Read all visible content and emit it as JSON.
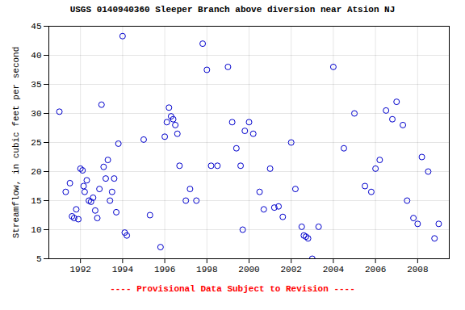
{
  "chart_data": {
    "type": "scatter",
    "title": "USGS 0140940360 Sleeper Branch above diversion near Atsion NJ",
    "ylabel": "Streamflow, in cubic feet per second",
    "annotations": [
      "---- Provisional Data Subject to Revision ----"
    ],
    "xlim": [
      1990.5,
      2009.5
    ],
    "ylim": [
      5,
      45
    ],
    "xticks": [
      1992,
      1994,
      1996,
      1998,
      2000,
      2002,
      2004,
      2006,
      2008
    ],
    "yticks": [
      5,
      10,
      15,
      20,
      25,
      30,
      35,
      40,
      45
    ],
    "grid": true,
    "color": "#0000cc",
    "marker": "circle",
    "x": [
      1991.0,
      1991.3,
      1991.5,
      1991.6,
      1991.7,
      1991.8,
      1991.9,
      1992.0,
      1992.1,
      1992.15,
      1992.2,
      1992.3,
      1992.4,
      1992.5,
      1992.6,
      1992.7,
      1992.8,
      1992.9,
      1993.0,
      1993.1,
      1993.2,
      1993.3,
      1993.4,
      1993.5,
      1993.6,
      1993.7,
      1993.8,
      1994.0,
      1994.1,
      1994.2,
      1995.0,
      1995.3,
      1995.8,
      1996.0,
      1996.1,
      1996.2,
      1996.3,
      1996.4,
      1996.5,
      1996.6,
      1996.7,
      1997.0,
      1997.2,
      1997.5,
      1997.8,
      1998.0,
      1998.2,
      1998.5,
      1999.0,
      1999.2,
      1999.4,
      1999.6,
      1999.7,
      1999.8,
      2000.0,
      2000.2,
      2000.5,
      2000.7,
      2001.0,
      2001.2,
      2001.4,
      2001.6,
      2002.0,
      2002.2,
      2002.5,
      2002.6,
      2002.7,
      2002.8,
      2003.0,
      2003.3,
      2004.0,
      2004.5,
      2005.0,
      2005.5,
      2005.8,
      2006.0,
      2006.2,
      2006.5,
      2006.8,
      2007.0,
      2007.3,
      2007.5,
      2007.8,
      2008.0,
      2008.2,
      2008.5,
      2008.8,
      2009.0
    ],
    "values": [
      30.3,
      16.5,
      18.0,
      12.3,
      12.0,
      13.5,
      11.8,
      20.5,
      20.2,
      17.5,
      16.5,
      18.5,
      15.0,
      14.8,
      15.5,
      13.3,
      12.0,
      17.0,
      31.5,
      20.8,
      18.8,
      22.0,
      15.0,
      16.5,
      18.8,
      13.0,
      24.8,
      43.3,
      9.5,
      9.0,
      25.5,
      12.5,
      7.0,
      26.0,
      28.5,
      31.0,
      29.5,
      29.0,
      28.0,
      26.5,
      21.0,
      15.0,
      17.0,
      15.0,
      42.0,
      37.5,
      21.0,
      21.0,
      38.0,
      28.5,
      24.0,
      21.0,
      10.0,
      27.0,
      28.5,
      26.5,
      16.5,
      13.5,
      20.5,
      13.8,
      14.0,
      12.2,
      25.0,
      17.0,
      10.5,
      9.0,
      8.8,
      8.5,
      5.0,
      10.5,
      38.0,
      24.0,
      30.0,
      17.5,
      16.5,
      20.5,
      22.0,
      30.5,
      29.0,
      32.0,
      28.0,
      15.0,
      12.0,
      11.0,
      22.5,
      20.0,
      8.5,
      11.0
    ]
  }
}
